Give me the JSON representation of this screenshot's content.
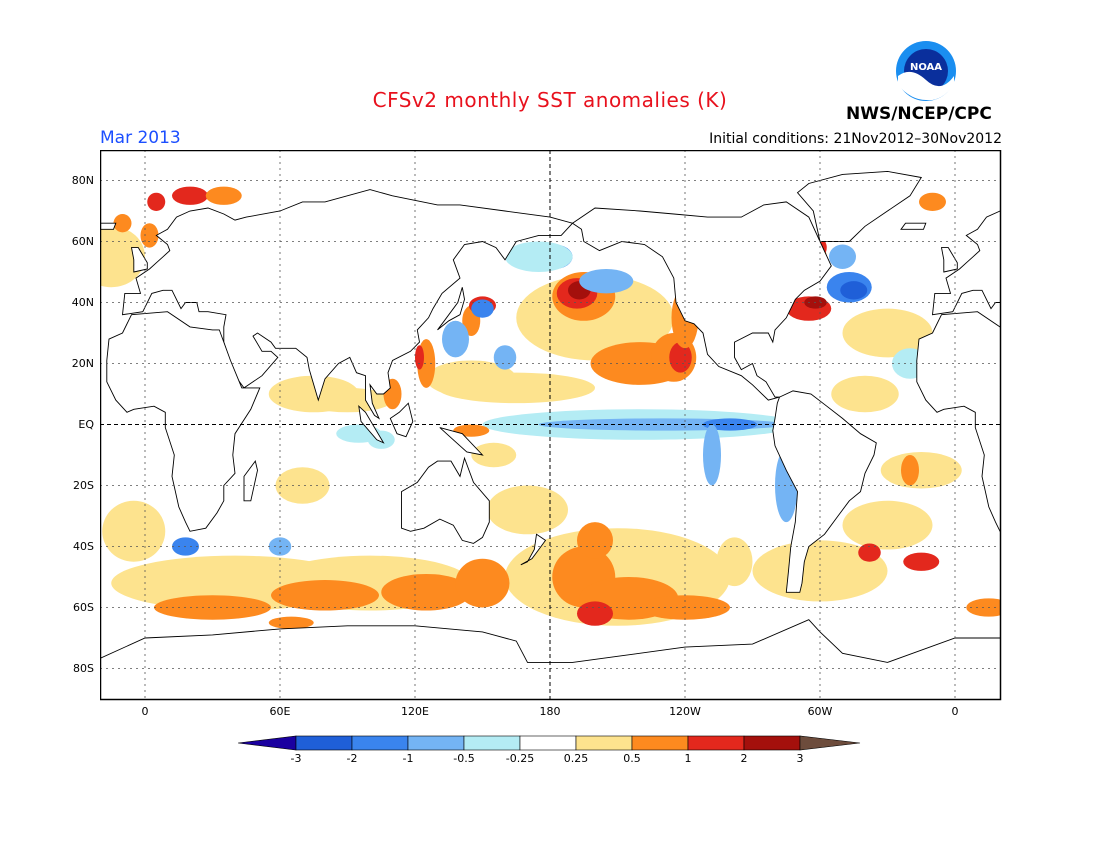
{
  "header": {
    "title": "CFSv2 monthly SST anomalies (K)",
    "agency": "NWS/NCEP/CPC",
    "month": "Mar 2013",
    "initial_conditions": "Initial conditions: 21Nov2012–30Nov2012",
    "logo_text": "NOAA"
  },
  "map": {
    "projection": "cylindrical equidistant",
    "lon_labels": [
      "0",
      "60E",
      "120E",
      "180",
      "120W",
      "60W",
      "0"
    ],
    "lat_labels": [
      "80N",
      "60N",
      "40N",
      "20N",
      "EQ",
      "20S",
      "40S",
      "60S",
      "80S"
    ],
    "lon_range_deg_east": [
      -20,
      380
    ],
    "lat_range": [
      -90,
      90
    ]
  },
  "colorbar": {
    "labels": [
      "-3",
      "-2",
      "-1",
      "-0.5",
      "-0.25",
      "0.25",
      "0.5",
      "1",
      "2",
      "3"
    ],
    "colors": [
      "#1a00a0",
      "#1f5fd8",
      "#3a84ee",
      "#74b4f4",
      "#b4ecf4",
      "#ffffff",
      "#fde38e",
      "#fd8a1f",
      "#e3281d",
      "#a4100c",
      "#6d4c3c"
    ]
  },
  "anomaly_regions": [
    {
      "name": "North Pacific warm pool",
      "lon": 195,
      "lat": 42,
      "value": 2
    },
    {
      "name": "Kuroshio extension cold",
      "lon": 150,
      "lat": 38,
      "value": -1
    },
    {
      "name": "Eastern equatorial Pacific cold tongue",
      "lon": 220,
      "lat": 0,
      "value": -0.5
    },
    {
      "name": "North equatorial Pacific warm band",
      "lon": 170,
      "lat": 12,
      "value": 0.5
    },
    {
      "name": "Baja California warm",
      "lon": 240,
      "lat": 22,
      "value": 1
    },
    {
      "name": "South Pacific warm",
      "lon": 215,
      "lat": -55,
      "value": 1
    },
    {
      "name": "Southern Ocean Indian sector warm",
      "lon": 80,
      "lat": -57,
      "value": 1
    },
    {
      "name": "Gulf Stream warm",
      "lon": 295,
      "lat": 40,
      "value": 2
    },
    {
      "name": "North Atlantic cold",
      "lon": 315,
      "lat": 45,
      "value": -1
    },
    {
      "name": "South Atlantic warm",
      "lon": 320,
      "lat": -42,
      "value": 2
    },
    {
      "name": "Barents Sea warm",
      "lon": 20,
      "lat": 75,
      "value": 2
    }
  ]
}
